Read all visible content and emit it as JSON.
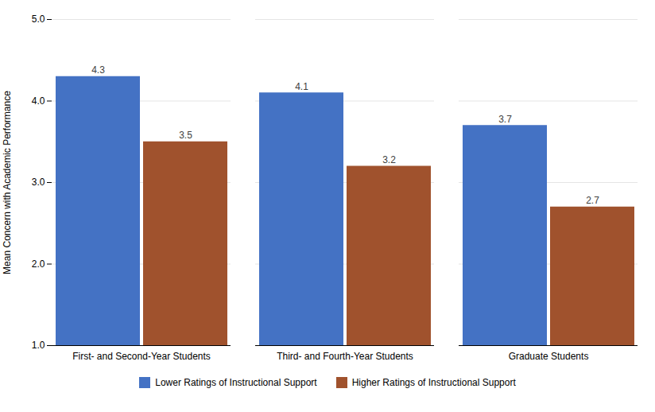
{
  "chart_data": {
    "type": "bar",
    "categories": [
      "First- and Second-Year Students",
      "Third- and Fourth-Year Students",
      "Graduate Students"
    ],
    "series": [
      {
        "name": "Lower Ratings of Instructional Support",
        "color": "#4472C4",
        "values": [
          4.3,
          4.1,
          3.7
        ]
      },
      {
        "name": "Higher Ratings of Instructional Support",
        "color": "#A0522D",
        "values": [
          3.5,
          3.2,
          2.7
        ]
      }
    ],
    "ylabel": "Mean Concern with Academic Performance",
    "ylim": [
      1.0,
      5.0
    ],
    "yticks": [
      {
        "value": 1.0,
        "label": "1.0"
      },
      {
        "value": 2.0,
        "label": "2.0"
      },
      {
        "value": 3.0,
        "label": "3.0"
      },
      {
        "value": 4.0,
        "label": "4.0"
      },
      {
        "value": 5.0,
        "label": "5.0"
      }
    ],
    "grid": true,
    "legend": "bottom",
    "data_labels": true
  }
}
